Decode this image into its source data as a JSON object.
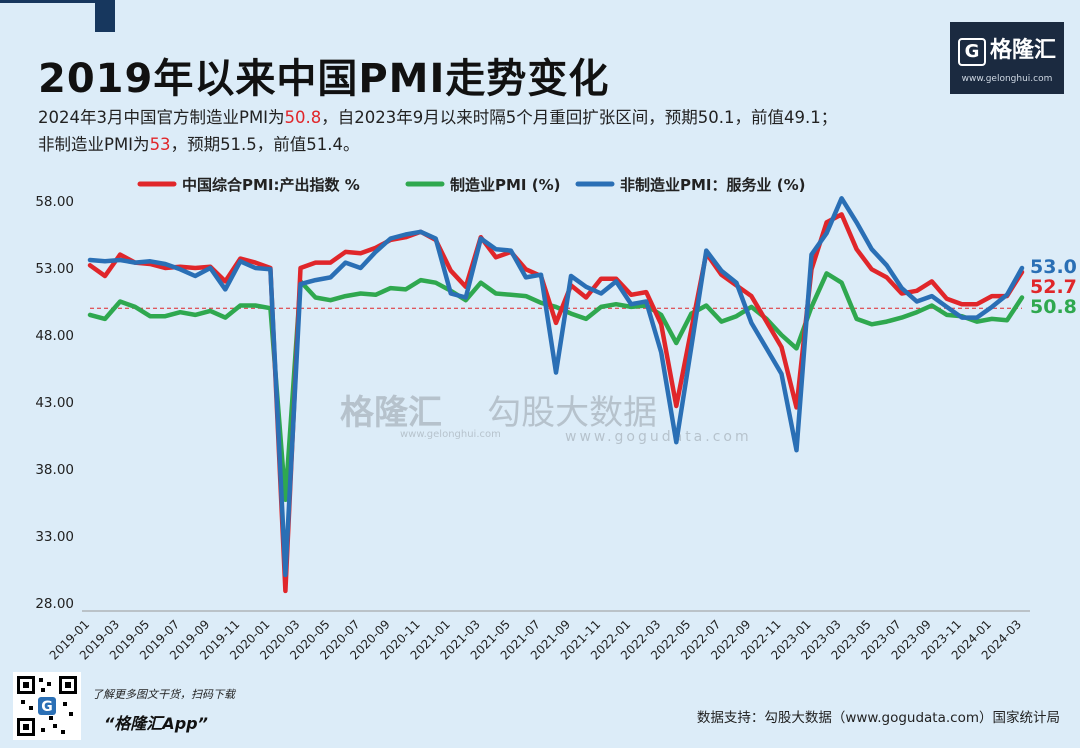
{
  "header": {
    "title": "2019年以来中国PMI走势变化",
    "subtitle_line1_a": "2024年3月中国官方制造业PMI为",
    "subtitle_line1_hl": "50.8",
    "subtitle_line1_b": "，自2023年9月以来时隔5个月重回扩张区间，预期50.1，前值49.1；",
    "subtitle_line2_a": "非制造业PMI为",
    "subtitle_line2_hl": "53",
    "subtitle_line2_b": "，预期51.5，前值51.4。"
  },
  "logo": {
    "glyph": "G",
    "name": "格隆汇",
    "url": "www.gelonghui.com"
  },
  "watermark": {
    "brand1": "格隆汇",
    "brand1_url": "www.gelonghui.com",
    "brand2": "勾股大数据",
    "brand2_url": "www.gogudata.com"
  },
  "footer": {
    "promo_line": "了解更多图文干货，扫码下载",
    "app_name": "“格隆汇App”",
    "source": "数据支持：勾股大数据（www.gogudata.com）国家统计局"
  },
  "colors": {
    "red": "#e0262a",
    "green": "#2fa84f",
    "blue": "#2a6fb5",
    "ref_line": "#e0262a"
  },
  "chart_data": {
    "type": "line",
    "title": "",
    "xlabel": "",
    "ylabel": "",
    "ylim": [
      28,
      58
    ],
    "yticks": [
      "28.00",
      "33.00",
      "38.00",
      "43.00",
      "48.00",
      "53.00",
      "58.00"
    ],
    "ytick_values": [
      28,
      33,
      38,
      43,
      48,
      53,
      58
    ],
    "reference_line": 50,
    "x": [
      "2019-01",
      "2019-02",
      "2019-03",
      "2019-04",
      "2019-05",
      "2019-06",
      "2019-07",
      "2019-08",
      "2019-09",
      "2019-10",
      "2019-11",
      "2019-12",
      "2020-01",
      "2020-02",
      "2020-03",
      "2020-04",
      "2020-05",
      "2020-06",
      "2020-07",
      "2020-08",
      "2020-09",
      "2020-10",
      "2020-11",
      "2020-12",
      "2021-01",
      "2021-02",
      "2021-03",
      "2021-04",
      "2021-05",
      "2021-06",
      "2021-07",
      "2021-08",
      "2021-09",
      "2021-10",
      "2021-11",
      "2021-12",
      "2022-01",
      "2022-02",
      "2022-03",
      "2022-04",
      "2022-05",
      "2022-06",
      "2022-07",
      "2022-08",
      "2022-09",
      "2022-10",
      "2022-11",
      "2022-12",
      "2023-01",
      "2023-02",
      "2023-03",
      "2023-04",
      "2023-05",
      "2023-06",
      "2023-07",
      "2023-08",
      "2023-09",
      "2023-10",
      "2023-11",
      "2023-12",
      "2024-01",
      "2024-02",
      "2024-03"
    ],
    "xtick_labels": [
      "2019-01",
      "2019-03",
      "2019-05",
      "2019-07",
      "2019-09",
      "2019-11",
      "2020-01",
      "2020-03",
      "2020-05",
      "2020-07",
      "2020-09",
      "2020-11",
      "2021-01",
      "2021-03",
      "2021-05",
      "2021-07",
      "2021-09",
      "2021-11",
      "2022-01",
      "2022-03",
      "2022-05",
      "2022-07",
      "2022-09",
      "2022-11",
      "2023-01",
      "2023-03",
      "2023-05",
      "2023-07",
      "2023-09",
      "2023-11",
      "2024-01",
      "2024-03"
    ],
    "series": [
      {
        "name": "中国综合PMI:产出指数 %",
        "color": "#e0262a",
        "values": [
          53.2,
          52.4,
          54.0,
          53.4,
          53.3,
          53.0,
          53.1,
          53.0,
          53.1,
          52.0,
          53.7,
          53.4,
          53.0,
          28.9,
          53.0,
          53.4,
          53.4,
          54.2,
          54.1,
          54.5,
          55.1,
          55.3,
          55.7,
          55.1,
          52.8,
          51.6,
          55.3,
          53.8,
          54.2,
          52.9,
          52.4,
          48.9,
          51.7,
          50.8,
          52.2,
          52.2,
          51.0,
          51.2,
          48.8,
          42.7,
          48.4,
          54.1,
          52.5,
          51.7,
          50.9,
          49.0,
          47.1,
          42.6,
          52.9,
          56.4,
          57.0,
          54.4,
          52.9,
          52.3,
          51.1,
          51.3,
          52.0,
          50.7,
          50.3,
          50.3,
          50.9,
          50.9,
          52.7
        ]
      },
      {
        "name": "制造业PMI (%)",
        "color": "#2fa84f",
        "values": [
          49.5,
          49.2,
          50.5,
          50.1,
          49.4,
          49.4,
          49.7,
          49.5,
          49.8,
          49.3,
          50.2,
          50.2,
          50.0,
          35.7,
          52.0,
          50.8,
          50.6,
          50.9,
          51.1,
          51.0,
          51.5,
          51.4,
          52.1,
          51.9,
          51.3,
          50.6,
          51.9,
          51.1,
          51.0,
          50.9,
          50.4,
          50.1,
          49.6,
          49.2,
          50.1,
          50.3,
          50.1,
          50.2,
          49.5,
          47.4,
          49.6,
          50.2,
          49.0,
          49.4,
          50.1,
          49.2,
          48.0,
          47.0,
          50.1,
          52.6,
          51.9,
          49.2,
          48.8,
          49.0,
          49.3,
          49.7,
          50.2,
          49.5,
          49.4,
          49.0,
          49.2,
          49.1,
          50.8
        ]
      },
      {
        "name": "非制造业PMI：服务业 (%)",
        "color": "#2a6fb5",
        "values": [
          53.6,
          53.5,
          53.6,
          53.4,
          53.5,
          53.3,
          52.9,
          52.4,
          53.0,
          51.4,
          53.5,
          53.0,
          52.9,
          30.1,
          51.8,
          52.1,
          52.3,
          53.4,
          53.0,
          54.2,
          55.2,
          55.5,
          55.7,
          55.2,
          51.1,
          50.8,
          55.2,
          54.4,
          54.3,
          52.3,
          52.5,
          45.2,
          52.4,
          51.6,
          51.1,
          52.0,
          50.3,
          50.5,
          46.7,
          40.0,
          47.1,
          54.3,
          52.8,
          51.9,
          48.9,
          47.0,
          45.1,
          39.4,
          54.0,
          55.6,
          58.2,
          56.4,
          54.4,
          53.2,
          51.5,
          50.5,
          50.9,
          50.1,
          49.3,
          49.3,
          50.1,
          51.0,
          53.0
        ]
      }
    ],
    "end_labels": [
      "53.0",
      "52.7",
      "50.8"
    ]
  }
}
